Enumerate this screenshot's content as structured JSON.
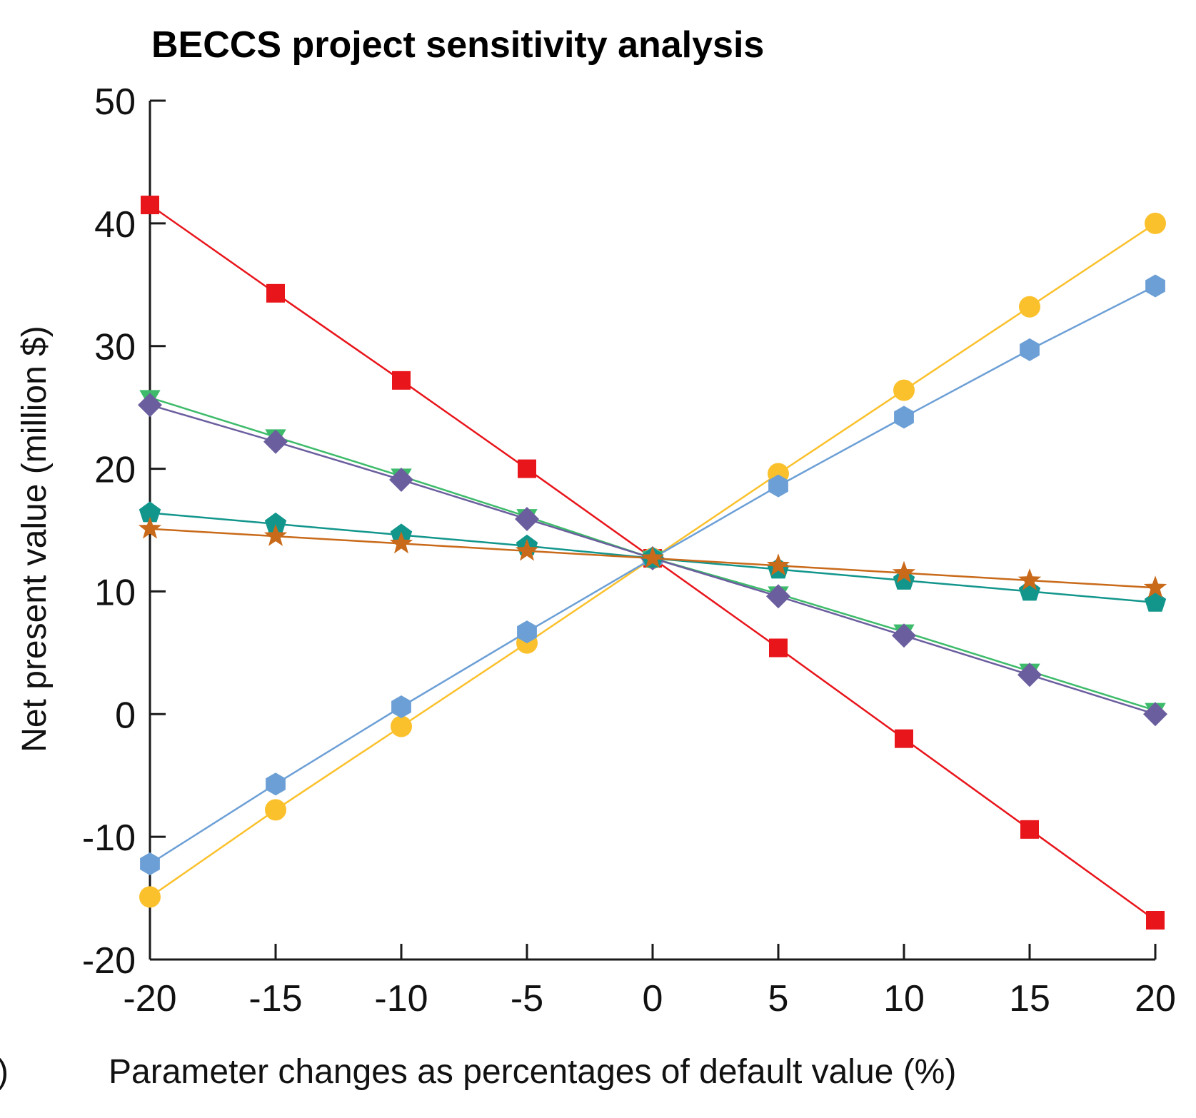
{
  "chart_data": {
    "type": "line",
    "title": "BECCS project sensitivity analysis",
    "xlabel": "Parameter changes as percentages of default value (%)",
    "ylabel": "Net present value (million $)",
    "panel_label": ")",
    "xlim": [
      -20,
      20
    ],
    "ylim": [
      -20,
      50
    ],
    "x_ticks": [
      -20,
      -15,
      -10,
      -5,
      0,
      5,
      10,
      15,
      20
    ],
    "y_ticks": [
      -20,
      -10,
      0,
      10,
      20,
      30,
      40,
      50
    ],
    "x": [
      -20,
      -15,
      -10,
      -5,
      0,
      5,
      10,
      15,
      20
    ],
    "grid": false,
    "series": [
      {
        "name": "square-red",
        "marker": "square",
        "color": "#e8151b",
        "values": [
          41.5,
          34.3,
          27.2,
          20.0,
          12.7,
          5.4,
          -2.0,
          -9.4,
          -16.8
        ]
      },
      {
        "name": "circle-yellow",
        "marker": "circle",
        "color": "#fbc12c",
        "values": [
          -14.9,
          -7.8,
          -1.0,
          5.8,
          12.7,
          19.6,
          26.4,
          33.2,
          40.0
        ]
      },
      {
        "name": "hexagon-blue",
        "marker": "hexagon",
        "color": "#6c9fd6",
        "values": [
          -12.2,
          -5.7,
          0.6,
          6.7,
          12.7,
          18.6,
          24.2,
          29.7,
          34.9
        ]
      },
      {
        "name": "triangle-green",
        "marker": "triangle-down",
        "color": "#3dbb6a",
        "values": [
          25.8,
          22.6,
          19.4,
          16.1,
          12.7,
          9.8,
          6.7,
          3.5,
          0.3
        ]
      },
      {
        "name": "diamond-purple",
        "marker": "diamond",
        "color": "#6b5e9e",
        "values": [
          25.2,
          22.2,
          19.1,
          15.9,
          12.7,
          9.6,
          6.4,
          3.2,
          0.0
        ]
      },
      {
        "name": "pentagon-teal",
        "marker": "pentagon",
        "color": "#12968c",
        "values": [
          16.4,
          15.5,
          14.6,
          13.7,
          12.7,
          11.8,
          10.9,
          10.0,
          9.1
        ]
      },
      {
        "name": "star-orange",
        "marker": "star",
        "color": "#c96a1a",
        "values": [
          15.1,
          14.5,
          13.9,
          13.3,
          12.7,
          12.1,
          11.5,
          10.9,
          10.3
        ]
      }
    ]
  }
}
